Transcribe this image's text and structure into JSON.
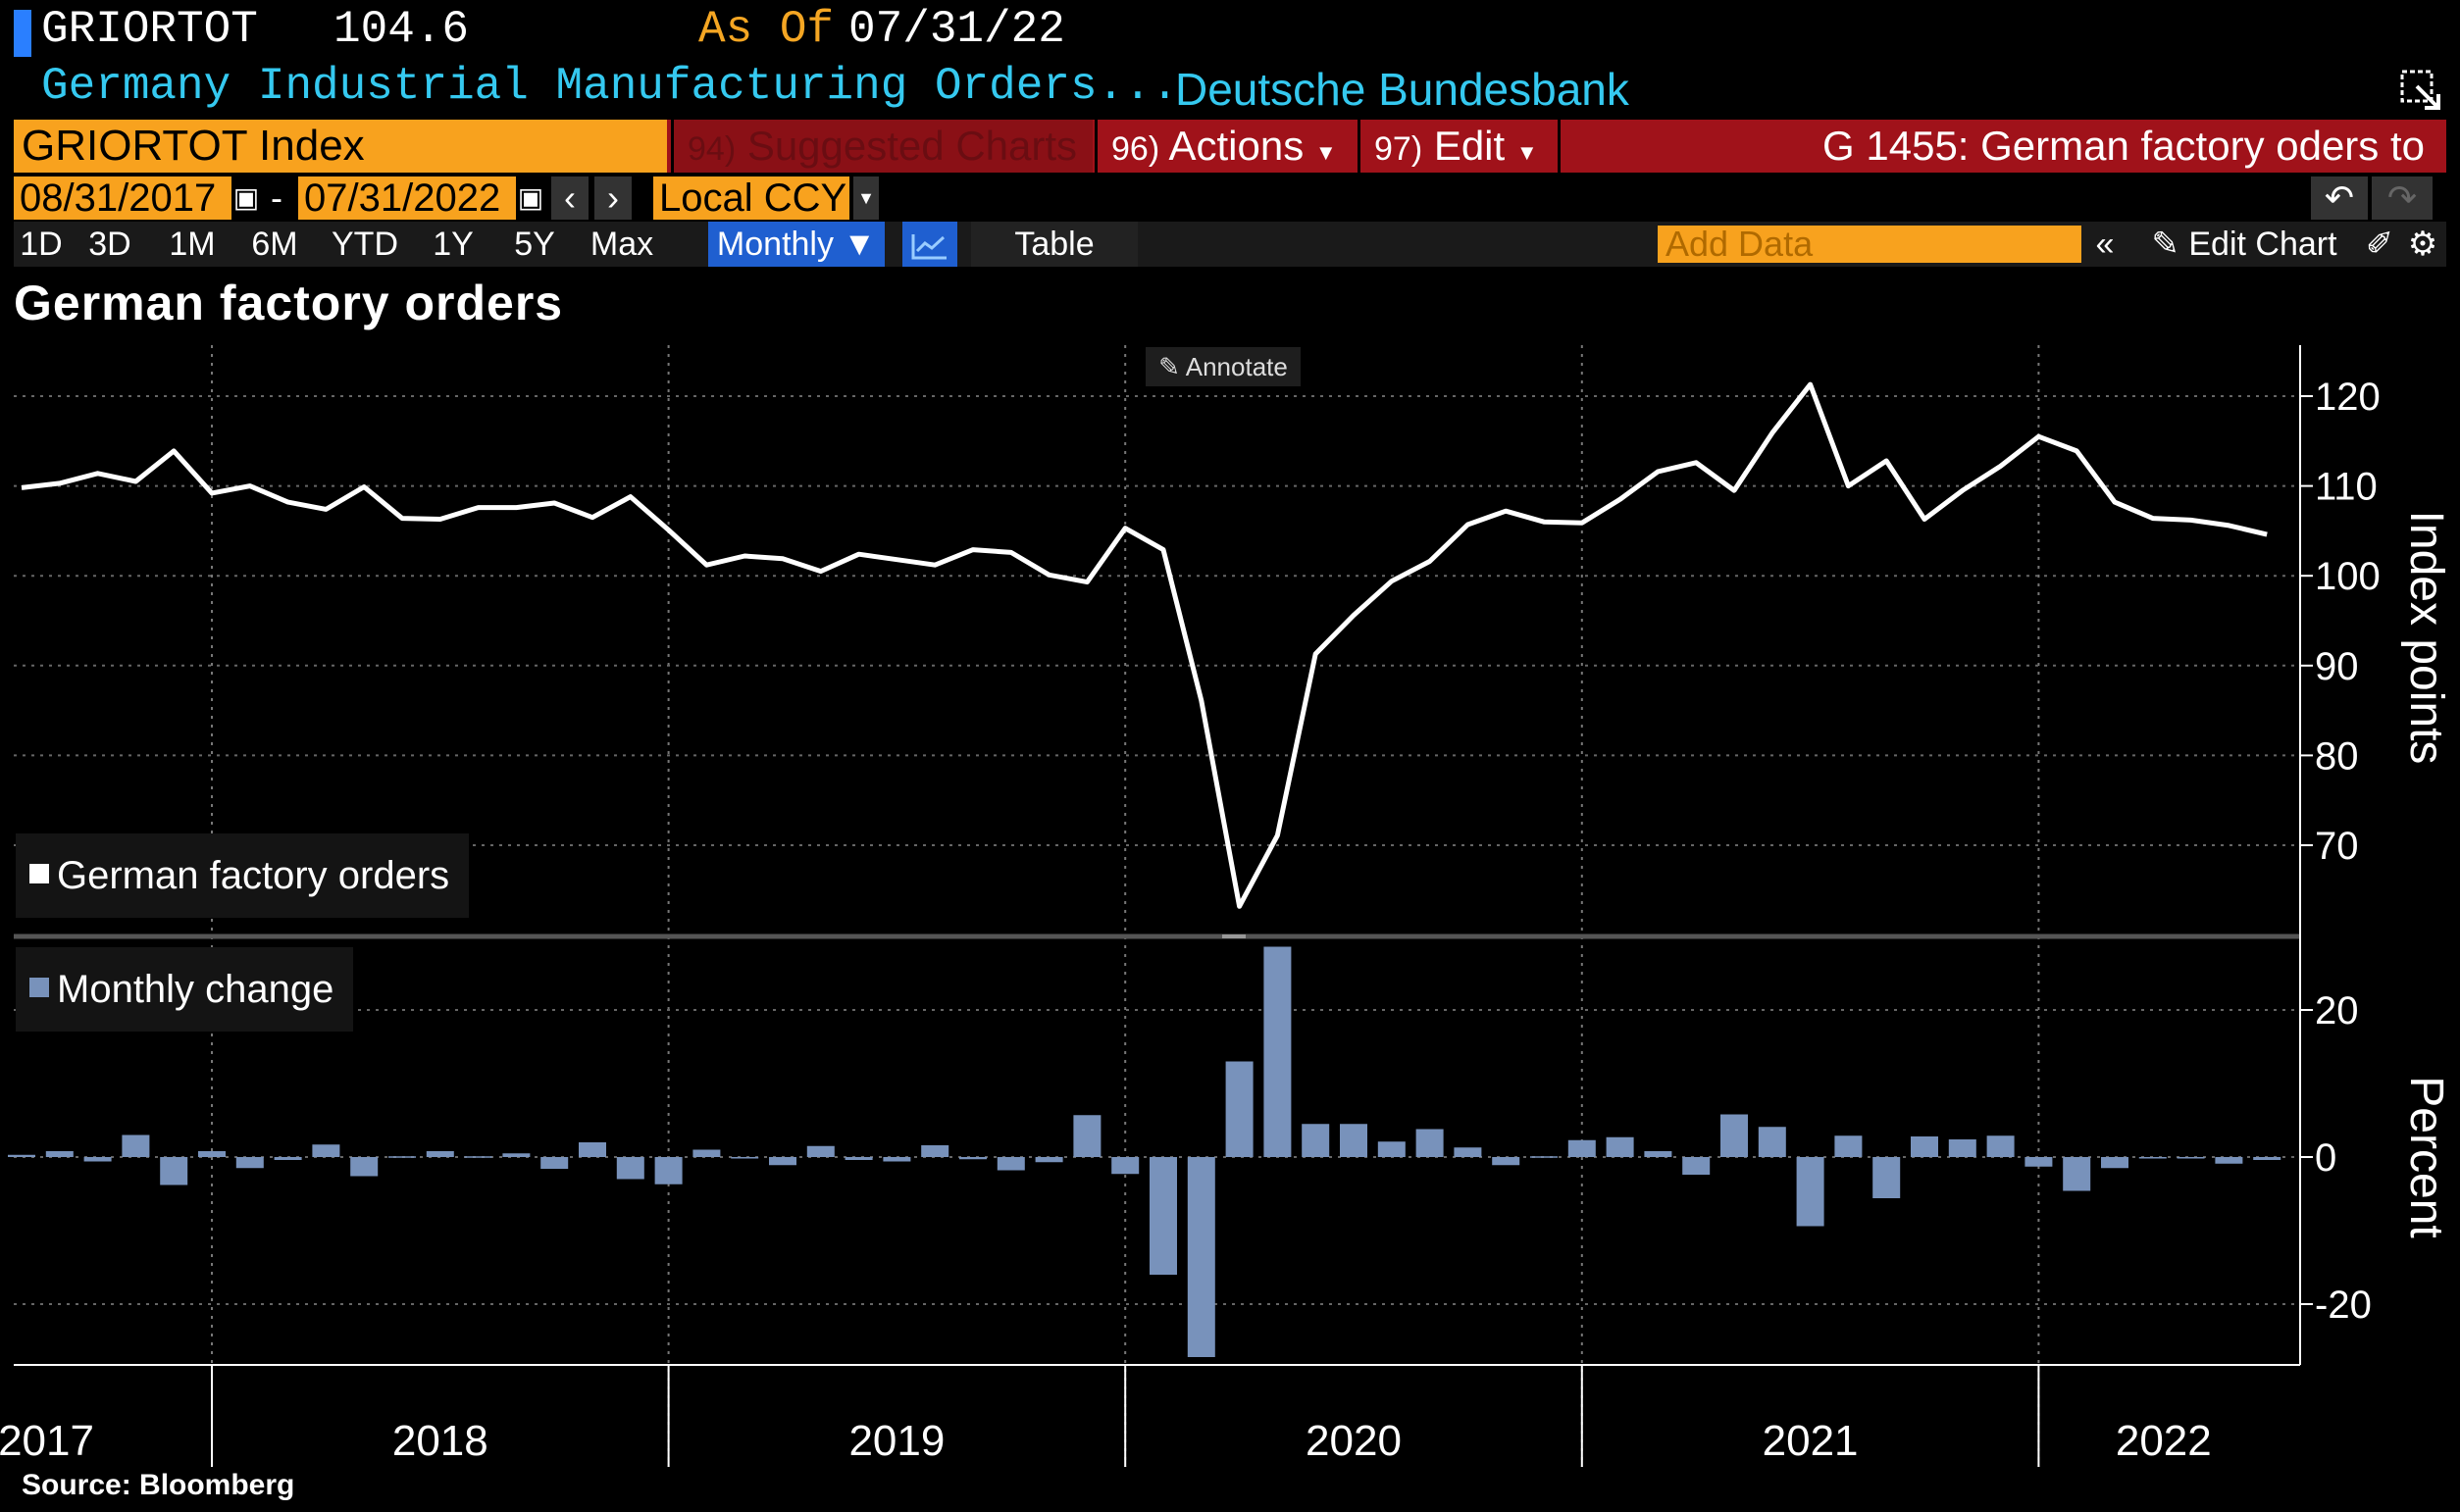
{
  "header": {
    "ticker": "GRIORTOT",
    "last_price": "104.6",
    "as_of_label": "As Of",
    "as_of_date": "07/31/22",
    "description": "Germany Industrial Manufacturing Orders...",
    "source": "Deutsche Bundesbank"
  },
  "command_bar": {
    "security": "GRIORTOT Index",
    "suggested_num": "94)",
    "suggested_label": "Suggested Charts",
    "actions_num": "96)",
    "actions_label": "Actions",
    "edit_num": "97)",
    "edit_label": "Edit",
    "chart_cmd": "G 1455: German factory oders to"
  },
  "date_range": {
    "start": "08/31/2017",
    "end": "07/31/2022",
    "separator": "-",
    "currency": "Local CCY"
  },
  "toolbar": {
    "periods": [
      "1D",
      "3D",
      "1M",
      "6M",
      "YTD",
      "1Y",
      "5Y",
      "Max"
    ],
    "frequency": "Monthly ▼",
    "table_label": "Table",
    "add_data_placeholder": "Add Data",
    "edit_chart_label": "Edit Chart"
  },
  "chart_title": "German factory orders",
  "annotate_label": "Annotate",
  "footer_source": "Source: Bloomberg",
  "colors": {
    "background": "#000000",
    "line": "#ffffff",
    "bars": "#7892bb",
    "accent_orange": "#f8a21e",
    "command_red": "#a0121a",
    "cyan": "#35c9f0"
  },
  "chart_data": [
    {
      "type": "line",
      "series": [
        {
          "name": "German factory orders",
          "color": "#ffffff"
        }
      ],
      "ylabel": "Index points",
      "yticks": [
        70,
        80,
        90,
        100,
        110,
        120
      ],
      "ylim": [
        61.5,
        123
      ],
      "x": [
        "2017-08",
        "2017-09",
        "2017-10",
        "2017-11",
        "2017-12",
        "2018-01",
        "2018-02",
        "2018-03",
        "2018-04",
        "2018-05",
        "2018-06",
        "2018-07",
        "2018-08",
        "2018-09",
        "2018-10",
        "2018-11",
        "2018-12",
        "2019-01",
        "2019-02",
        "2019-03",
        "2019-04",
        "2019-05",
        "2019-06",
        "2019-07",
        "2019-08",
        "2019-09",
        "2019-10",
        "2019-11",
        "2019-12",
        "2020-01",
        "2020-02",
        "2020-03",
        "2020-04",
        "2020-05",
        "2020-06",
        "2020-07",
        "2020-08",
        "2020-09",
        "2020-10",
        "2020-11",
        "2020-12",
        "2021-01",
        "2021-02",
        "2021-03",
        "2021-04",
        "2021-05",
        "2021-06",
        "2021-07",
        "2021-08",
        "2021-09",
        "2021-10",
        "2021-11",
        "2021-12",
        "2022-01",
        "2022-02",
        "2022-03",
        "2022-04",
        "2022-05",
        "2022-06",
        "2022-07"
      ],
      "values": [
        109.8,
        110.3,
        111.4,
        110.5,
        113.9,
        109.2,
        110.0,
        108.2,
        107.4,
        109.9,
        106.4,
        106.3,
        107.6,
        107.6,
        108.1,
        106.5,
        108.8,
        105.1,
        101.2,
        102.2,
        101.9,
        100.5,
        102.4,
        101.8,
        101.2,
        102.9,
        102.6,
        100.1,
        99.3,
        105.3,
        102.9,
        86.1,
        63.2,
        71.1,
        91.3,
        95.6,
        99.4,
        101.6,
        105.7,
        107.2,
        106.0,
        105.9,
        108.5,
        111.6,
        112.6,
        109.5,
        115.9,
        121.3,
        110.0,
        112.8,
        106.3,
        109.5,
        112.2,
        115.5,
        113.9,
        108.2,
        106.4,
        106.2,
        105.6,
        104.6
      ]
    },
    {
      "type": "bar",
      "series": [
        {
          "name": "Monthly change",
          "color": "#7892bb"
        }
      ],
      "ylabel": "Percent",
      "yticks": [
        -20,
        0,
        20
      ],
      "ylim": [
        -27.5,
        28.5
      ],
      "x": [
        "2017-08",
        "2017-09",
        "2017-10",
        "2017-11",
        "2017-12",
        "2018-01",
        "2018-02",
        "2018-03",
        "2018-04",
        "2018-05",
        "2018-06",
        "2018-07",
        "2018-08",
        "2018-09",
        "2018-10",
        "2018-11",
        "2018-12",
        "2019-01",
        "2019-02",
        "2019-03",
        "2019-04",
        "2019-05",
        "2019-06",
        "2019-07",
        "2019-08",
        "2019-09",
        "2019-10",
        "2019-11",
        "2019-12",
        "2020-01",
        "2020-02",
        "2020-03",
        "2020-04",
        "2020-05",
        "2020-06",
        "2020-07",
        "2020-08",
        "2020-09",
        "2020-10",
        "2020-11",
        "2020-12",
        "2021-01",
        "2021-02",
        "2021-03",
        "2021-04",
        "2021-05",
        "2021-06",
        "2021-07",
        "2021-08",
        "2021-09",
        "2021-10",
        "2021-11",
        "2021-12",
        "2022-01",
        "2022-02",
        "2022-03",
        "2022-04",
        "2022-05",
        "2022-06",
        "2022-07"
      ],
      "values": [
        0.3,
        0.8,
        -0.6,
        3.0,
        -3.8,
        0.8,
        -1.5,
        -0.4,
        1.7,
        -2.6,
        0.1,
        0.8,
        0.1,
        0.5,
        -1.6,
        2.0,
        -3.0,
        -3.7,
        1.0,
        -0.1,
        -1.1,
        1.5,
        -0.4,
        -0.6,
        1.6,
        -0.3,
        -1.8,
        -0.7,
        5.7,
        -2.3,
        -16.0,
        -27.2,
        13.0,
        28.6,
        4.5,
        4.5,
        2.1,
        3.8,
        1.3,
        -1.1,
        0.1,
        2.3,
        2.7,
        0.8,
        -2.4,
        5.8,
        4.1,
        -9.4,
        2.9,
        -5.6,
        2.8,
        2.4,
        2.9,
        -1.3,
        -4.6,
        -1.5,
        -0.2,
        -0.1,
        -0.9,
        -0.4
      ]
    }
  ],
  "x_axis": {
    "year_labels": [
      "2017",
      "2018",
      "2019",
      "2020",
      "2021",
      "2022"
    ]
  }
}
